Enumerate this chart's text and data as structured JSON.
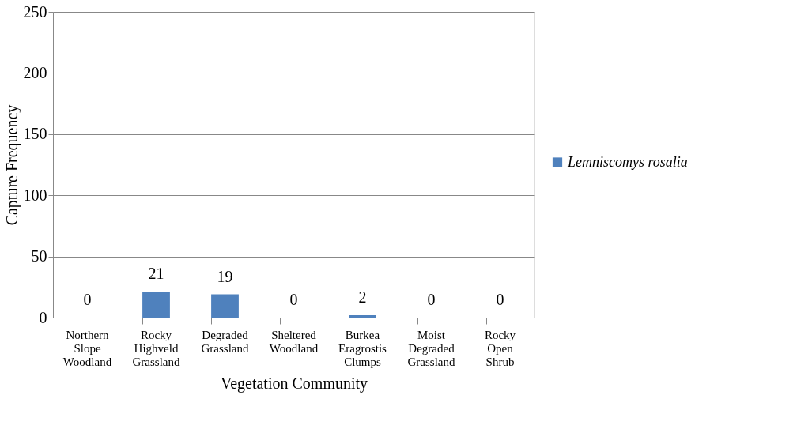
{
  "chart_data": {
    "type": "bar",
    "xlabel": "Vegetation Community",
    "ylabel": "Capture Frequency",
    "categories": [
      "Northern Slope Woodland",
      "Rocky Highveld Grassland",
      "Degraded Grassland",
      "Sheltered Woodland",
      "Burkea Eragrostis Clumps",
      "Moist Degraded Grassland",
      "Rocky Open Shrub"
    ],
    "series": [
      {
        "name": "Lemniscomys rosalia",
        "color": "#4f81bd",
        "values": [
          0,
          21,
          19,
          0,
          2,
          0,
          0
        ]
      }
    ],
    "ylim": [
      0,
      250
    ],
    "yticks": [
      0,
      50,
      100,
      150,
      200,
      250
    ],
    "grid": "y",
    "legend": "right",
    "data_labels": true
  }
}
